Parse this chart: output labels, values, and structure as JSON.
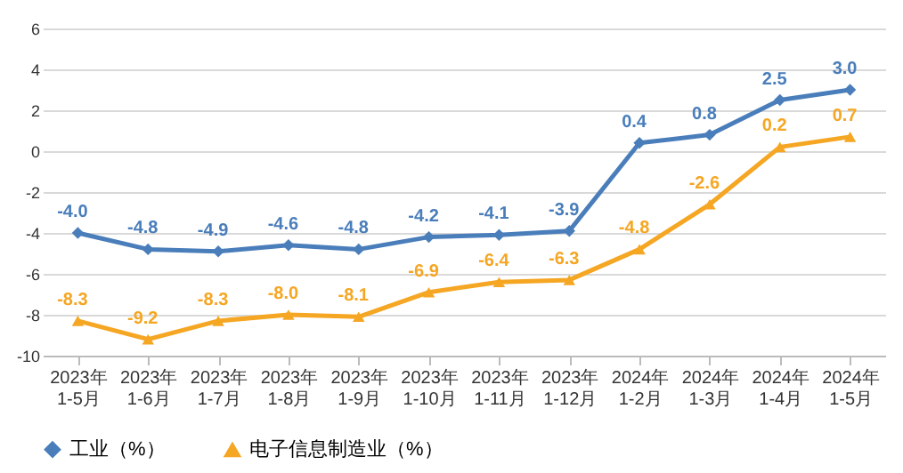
{
  "chart_data": {
    "type": "line",
    "categories": [
      "2023年\n1-5月",
      "2023年\n1-6月",
      "2023年\n1-7月",
      "2023年\n1-8月",
      "2023年\n1-9月",
      "2023年\n1-10月",
      "2023年\n1-11月",
      "2023年\n1-12月",
      "2024年\n1-2月",
      "2024年\n1-3月",
      "2024年\n1-4月",
      "2024年\n1-5月"
    ],
    "series": [
      {
        "name": "工业（%）",
        "color": "#4a7ebb",
        "marker": "diamond",
        "values": [
          -4.0,
          -4.8,
          -4.9,
          -4.6,
          -4.8,
          -4.2,
          -4.1,
          -3.9,
          0.4,
          0.8,
          2.5,
          3.0
        ],
        "value_labels": [
          "-4.0",
          "-4.8",
          "-4.9",
          "-4.6",
          "-4.8",
          "-4.2",
          "-4.1",
          "-3.9",
          "0.4",
          "0.8",
          "2.5",
          "3.0"
        ]
      },
      {
        "name": "电子信息制造业（%）",
        "color": "#f5a623",
        "marker": "triangle",
        "values": [
          -8.3,
          -9.2,
          -8.3,
          -8.0,
          -8.1,
          -6.9,
          -6.4,
          -6.3,
          -4.8,
          -2.6,
          0.2,
          0.7
        ],
        "value_labels": [
          "-8.3",
          "-9.2",
          "-8.3",
          "-8.0",
          "-8.1",
          "-6.9",
          "-6.4",
          "-6.3",
          "-4.8",
          "-2.6",
          "0.2",
          "0.7"
        ]
      }
    ],
    "ylim": [
      -10,
      6
    ],
    "yticks": [
      -10,
      -8,
      -6,
      -4,
      -2,
      0,
      2,
      4,
      6
    ],
    "grid": "y",
    "legend": "bottom",
    "line_style": "solid"
  }
}
